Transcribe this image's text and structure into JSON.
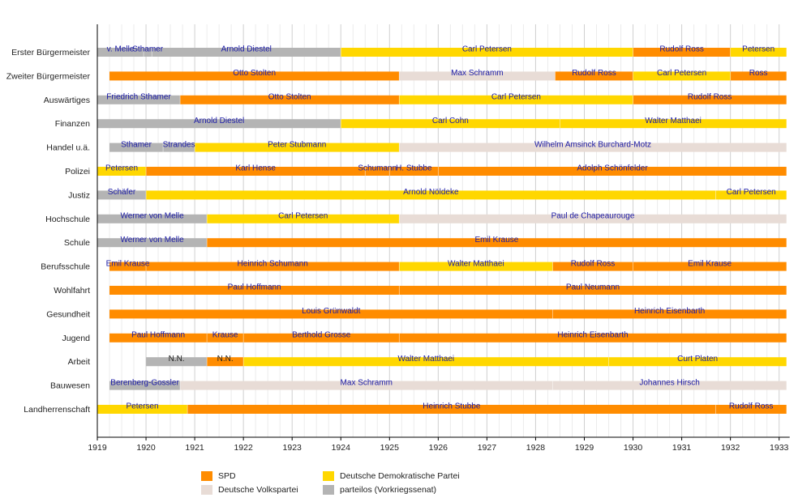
{
  "chart_data": {
    "type": "gantt",
    "xlim": [
      1919.0,
      1933.2
    ],
    "ticks": [
      1919,
      1920,
      1921,
      1922,
      1923,
      1924,
      1925,
      1926,
      1927,
      1928,
      1929,
      1930,
      1931,
      1932,
      1933
    ],
    "colors": {
      "SPD": "#ff8c00",
      "DDP": "#ffd700",
      "DVP": "#e8dcd6",
      "parteilos": "#b4b4b4"
    },
    "legend": [
      {
        "key": "SPD",
        "label": "SPD"
      },
      {
        "key": "DVP",
        "label": "Deutsche Volkspartei"
      },
      {
        "key": "DDP",
        "label": "Deutsche Demokratische Partei"
      },
      {
        "key": "parteilos",
        "label": "parteilos (Vorkriegssenat)"
      }
    ],
    "rows": [
      {
        "label": "Erster Bürgermeister",
        "bars": [
          {
            "name": "v. Melle",
            "party": "parteilos",
            "start": 1919.0,
            "end": 1919.95
          },
          {
            "name": "Sthamer",
            "party": "parteilos",
            "start": 1919.95,
            "end": 1920.12
          },
          {
            "name": "Arnold Diestel",
            "party": "parteilos",
            "start": 1920.12,
            "end": 1924.0
          },
          {
            "name": "Carl Petersen",
            "party": "DDP",
            "start": 1924.0,
            "end": 1930.0
          },
          {
            "name": "Rudolf Ross",
            "party": "SPD",
            "start": 1930.0,
            "end": 1932.0
          },
          {
            "name": "Petersen",
            "party": "DDP",
            "start": 1932.0,
            "end": 1933.15
          }
        ]
      },
      {
        "label": "Zweiter Bürgermeister",
        "bars": [
          {
            "name": "Otto Stolten",
            "party": "SPD",
            "start": 1919.25,
            "end": 1925.2
          },
          {
            "name": "Max Schramm",
            "party": "DVP",
            "start": 1925.2,
            "end": 1928.4
          },
          {
            "name": "Rudolf Ross",
            "party": "SPD",
            "start": 1928.4,
            "end": 1930.0
          },
          {
            "name": "Carl Petersen",
            "party": "DDP",
            "start": 1930.0,
            "end": 1932.0
          },
          {
            "name": "Ross",
            "party": "SPD",
            "start": 1932.0,
            "end": 1933.15
          }
        ]
      },
      {
        "label": "Auswärtiges",
        "bars": [
          {
            "name": "Friedrich Sthamer",
            "party": "parteilos",
            "start": 1919.0,
            "end": 1920.7
          },
          {
            "name": "Otto Stolten",
            "party": "SPD",
            "start": 1920.7,
            "end": 1925.2
          },
          {
            "name": "Carl Petersen",
            "party": "DDP",
            "start": 1925.2,
            "end": 1930.0
          },
          {
            "name": "Rudolf Ross",
            "party": "SPD",
            "start": 1930.0,
            "end": 1933.15
          }
        ]
      },
      {
        "label": "Finanzen",
        "bars": [
          {
            "name": "Arnold Diestel",
            "party": "parteilos",
            "start": 1919.0,
            "end": 1924.0
          },
          {
            "name": "Carl Cohn",
            "party": "DDP",
            "start": 1924.0,
            "end": 1928.5
          },
          {
            "name": "Walter Matthaei",
            "party": "DDP",
            "start": 1928.5,
            "end": 1933.15
          }
        ]
      },
      {
        "label": "Handel u.ä.",
        "bars": [
          {
            "name": "Sthamer",
            "party": "parteilos",
            "start": 1919.25,
            "end": 1920.35
          },
          {
            "name": "Strandes",
            "party": "parteilos",
            "start": 1920.35,
            "end": 1921.0
          },
          {
            "name": "Peter Stubmann",
            "party": "DDP",
            "start": 1921.0,
            "end": 1925.2
          },
          {
            "name": "Wilhelm Amsinck Burchard-Motz",
            "party": "DVP",
            "start": 1925.2,
            "end": 1933.15
          }
        ]
      },
      {
        "label": "Polizei",
        "bars": [
          {
            "name": "Petersen",
            "party": "DDP",
            "start": 1919.0,
            "end": 1920.0
          },
          {
            "name": "Karl Hense",
            "party": "SPD",
            "start": 1920.0,
            "end": 1924.5
          },
          {
            "name": "Schumann",
            "party": "SPD",
            "start": 1924.5,
            "end": 1925.0
          },
          {
            "name": "H. Stubbe",
            "party": "SPD",
            "start": 1925.0,
            "end": 1926.0
          },
          {
            "name": "Adolph Schönfelder",
            "party": "SPD",
            "start": 1926.0,
            "end": 1933.15
          }
        ]
      },
      {
        "label": "Justiz",
        "bars": [
          {
            "name": "Schäfer",
            "party": "parteilos",
            "start": 1919.0,
            "end": 1920.0
          },
          {
            "name": "Arnold Nöldeke",
            "party": "DDP",
            "start": 1920.0,
            "end": 1931.7
          },
          {
            "name": "Carl Petersen",
            "party": "DDP",
            "start": 1931.7,
            "end": 1933.15
          }
        ]
      },
      {
        "label": "Hochschule",
        "bars": [
          {
            "name": "Werner von Melle",
            "party": "parteilos",
            "start": 1919.0,
            "end": 1921.25
          },
          {
            "name": "Carl Petersen",
            "party": "DDP",
            "start": 1921.25,
            "end": 1925.2
          },
          {
            "name": "Paul de Chapeaurouge",
            "party": "DVP",
            "start": 1925.2,
            "end": 1933.15
          }
        ]
      },
      {
        "label": "Schule",
        "bars": [
          {
            "name": "Werner von Melle",
            "party": "parteilos",
            "start": 1919.0,
            "end": 1921.25
          },
          {
            "name": "Emil Krause",
            "party": "SPD",
            "start": 1921.25,
            "end": 1933.15
          }
        ]
      },
      {
        "label": "Berufsschule",
        "bars": [
          {
            "name": "Emil Krause",
            "party": "SPD",
            "start": 1919.25,
            "end": 1920.0
          },
          {
            "name": "Heinrich Schumann",
            "party": "SPD",
            "start": 1920.0,
            "end": 1925.2
          },
          {
            "name": "Walter Matthaei",
            "party": "DDP",
            "start": 1925.2,
            "end": 1928.35
          },
          {
            "name": "Rudolf Ross",
            "party": "SPD",
            "start": 1928.35,
            "end": 1930.0
          },
          {
            "name": "Emil Krause",
            "party": "SPD",
            "start": 1930.0,
            "end": 1933.15
          }
        ]
      },
      {
        "label": "Wohlfahrt",
        "bars": [
          {
            "name": "Paul Hoffmann",
            "party": "SPD",
            "start": 1919.25,
            "end": 1925.2
          },
          {
            "name": "Paul Neumann",
            "party": "SPD",
            "start": 1925.2,
            "end": 1933.15
          }
        ]
      },
      {
        "label": "Gesundheit",
        "bars": [
          {
            "name": "Louis Grünwaldt",
            "party": "SPD",
            "start": 1919.25,
            "end": 1928.35
          },
          {
            "name": "Heinrich Eisenbarth",
            "party": "SPD",
            "start": 1928.35,
            "end": 1933.15
          }
        ]
      },
      {
        "label": "Jugend",
        "bars": [
          {
            "name": "Paul Hoffmann",
            "party": "SPD",
            "start": 1919.25,
            "end": 1921.25
          },
          {
            "name": "Krause",
            "party": "SPD",
            "start": 1921.25,
            "end": 1922.0
          },
          {
            "name": "Berthold Grosse",
            "party": "SPD",
            "start": 1922.0,
            "end": 1925.2
          },
          {
            "name": "Heinrich Eisenbarth",
            "party": "SPD",
            "start": 1925.2,
            "end": 1933.15
          }
        ]
      },
      {
        "label": "Arbeit",
        "bars": [
          {
            "name": "N.N.",
            "party": "parteilos",
            "start": 1920.0,
            "end": 1921.25
          },
          {
            "name": "N.N.",
            "party": "SPD",
            "start": 1921.25,
            "end": 1922.0
          },
          {
            "name": "Walter Matthaei",
            "party": "DDP",
            "start": 1922.0,
            "end": 1929.5
          },
          {
            "name": "Curt Platen",
            "party": "DDP",
            "start": 1929.5,
            "end": 1933.15
          }
        ]
      },
      {
        "label": "Bauwesen",
        "bars": [
          {
            "name": "Berenberg-Gossler",
            "party": "parteilos",
            "start": 1919.25,
            "end": 1920.7
          },
          {
            "name": "Max Schramm",
            "party": "DVP",
            "start": 1920.7,
            "end": 1928.35
          },
          {
            "name": "Johannes Hirsch",
            "party": "DVP",
            "start": 1928.35,
            "end": 1933.15
          }
        ]
      },
      {
        "label": "Landherrenschaft",
        "bars": [
          {
            "name": "Petersen",
            "party": "DDP",
            "start": 1919.0,
            "end": 1920.85
          },
          {
            "name": "Heinrich Stubbe",
            "party": "SPD",
            "start": 1920.85,
            "end": 1931.7
          },
          {
            "name": "Rudolf Ross",
            "party": "SPD",
            "start": 1931.7,
            "end": 1933.15
          }
        ]
      }
    ]
  }
}
